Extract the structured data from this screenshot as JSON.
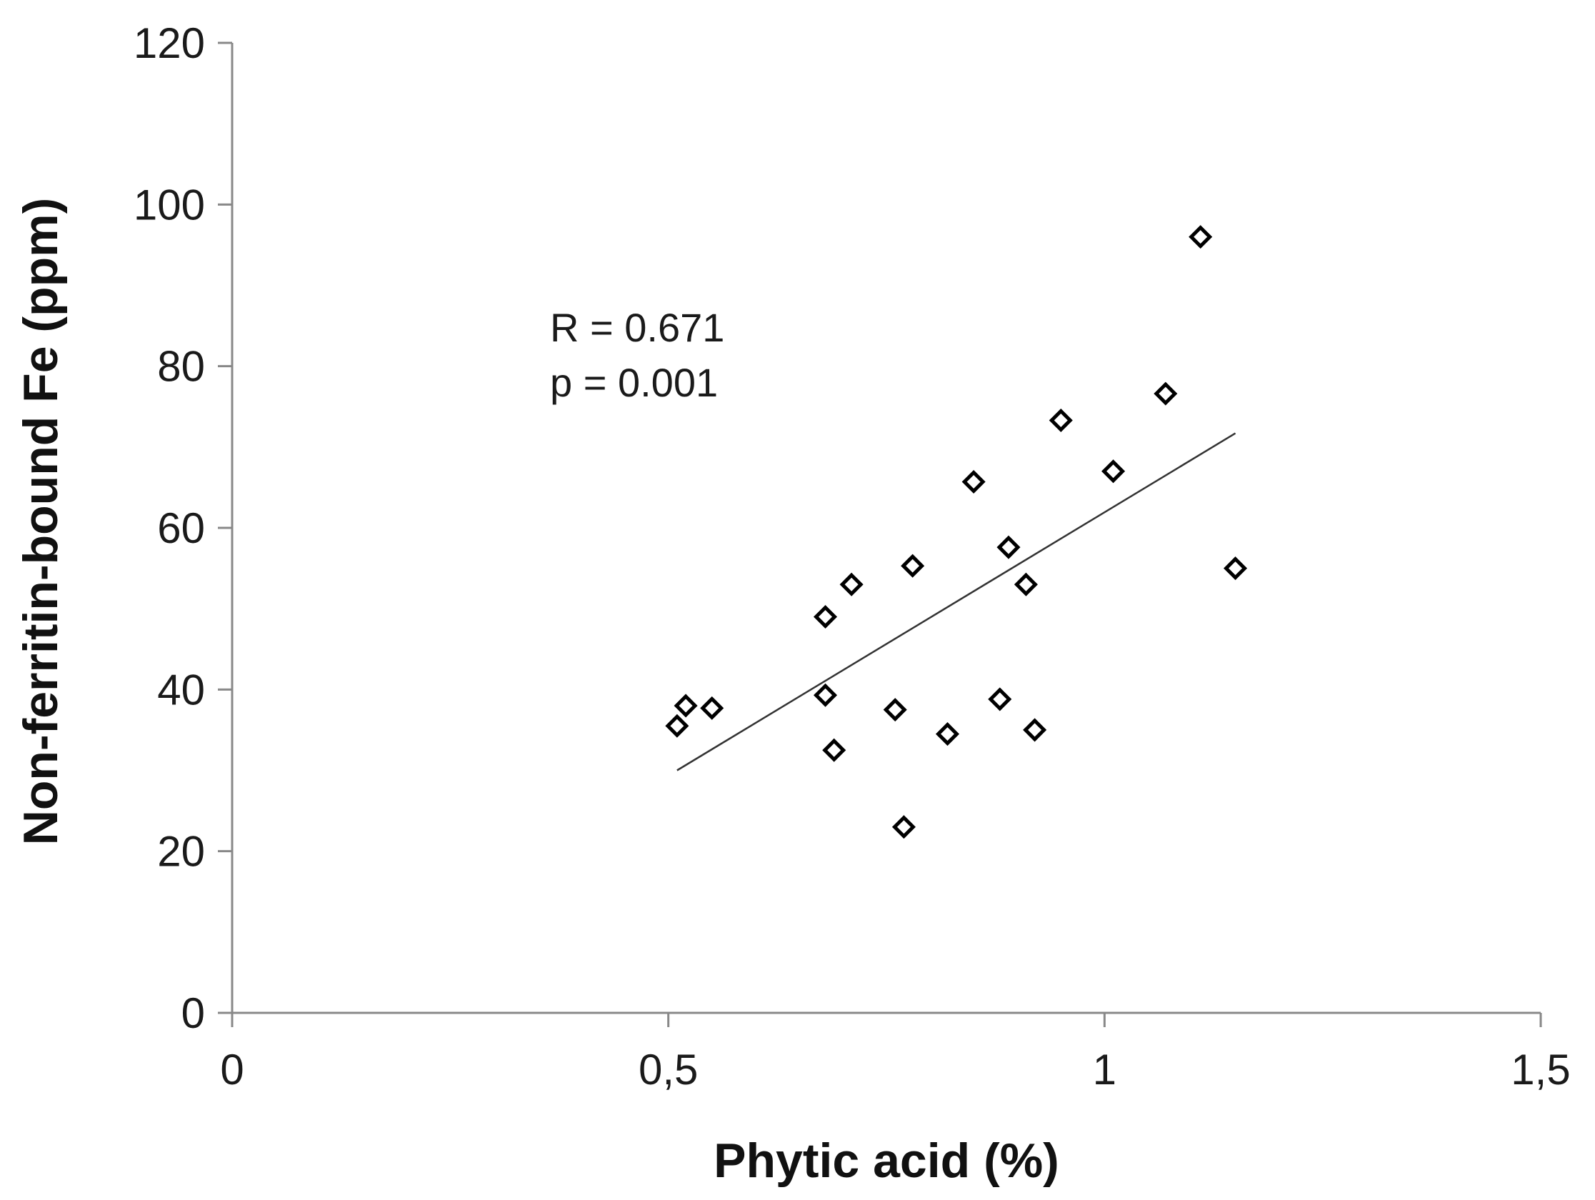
{
  "chart_data": {
    "type": "scatter",
    "xlabel": "Phytic acid (%)",
    "ylabel": "Non-ferritin-bound Fe (ppm)",
    "xlim": [
      0,
      1.5
    ],
    "ylim": [
      0,
      120
    ],
    "x_ticks": [
      0,
      0.5,
      1,
      1.5
    ],
    "x_tick_labels": [
      "0",
      "0,5",
      "1",
      "1,5"
    ],
    "y_ticks": [
      0,
      20,
      40,
      60,
      80,
      100,
      120
    ],
    "y_tick_labels": [
      "0",
      "20",
      "40",
      "60",
      "80",
      "100",
      "120"
    ],
    "grid": false,
    "marker": "diamond-open",
    "series": [
      {
        "points": [
          {
            "x": 0.51,
            "y": 35.5
          },
          {
            "x": 0.52,
            "y": 38.0
          },
          {
            "x": 0.55,
            "y": 37.7
          },
          {
            "x": 0.68,
            "y": 49.0
          },
          {
            "x": 0.68,
            "y": 39.3
          },
          {
            "x": 0.69,
            "y": 32.5
          },
          {
            "x": 0.71,
            "y": 53.0
          },
          {
            "x": 0.76,
            "y": 37.5
          },
          {
            "x": 0.77,
            "y": 23.0
          },
          {
            "x": 0.78,
            "y": 55.3
          },
          {
            "x": 0.82,
            "y": 34.5
          },
          {
            "x": 0.85,
            "y": 65.7
          },
          {
            "x": 0.88,
            "y": 38.8
          },
          {
            "x": 0.89,
            "y": 57.6
          },
          {
            "x": 0.91,
            "y": 53.0
          },
          {
            "x": 0.92,
            "y": 35.0
          },
          {
            "x": 0.95,
            "y": 73.3
          },
          {
            "x": 1.01,
            "y": 67.0
          },
          {
            "x": 1.07,
            "y": 76.6
          },
          {
            "x": 1.11,
            "y": 96.0
          },
          {
            "x": 1.15,
            "y": 55.0
          }
        ]
      }
    ],
    "trendline": {
      "x": [
        0.51,
        1.15
      ],
      "y": [
        30.0,
        71.7
      ]
    },
    "annotations": [
      "R = 0.671",
      "p = 0.001"
    ],
    "colors": {
      "axis": "#888888",
      "marker": "#000000",
      "trendline": "#333333",
      "text": "#1a1a1a"
    }
  }
}
